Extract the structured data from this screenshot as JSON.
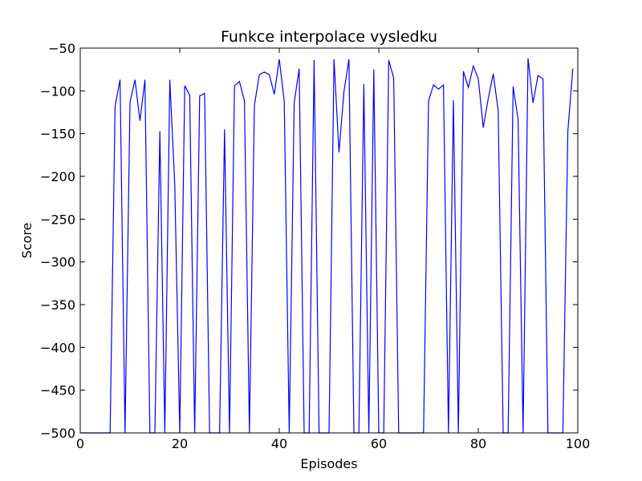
{
  "chart_data": {
    "type": "line",
    "title": "Funkce interpolace vysledku",
    "xlabel": "Episodes",
    "ylabel": "Score",
    "xlim": [
      0,
      100
    ],
    "ylim": [
      -500,
      -50
    ],
    "xticks": [
      0,
      20,
      40,
      60,
      80,
      100
    ],
    "yticks": [
      -500,
      -450,
      -400,
      -350,
      -300,
      -250,
      -200,
      -150,
      -100,
      -50
    ],
    "xtick_labels": [
      "0",
      "20",
      "40",
      "60",
      "80",
      "100"
    ],
    "ytick_labels": [
      "−500",
      "−450",
      "−400",
      "−350",
      "−300",
      "−250",
      "−200",
      "−150",
      "−100",
      "−50"
    ],
    "grid": false,
    "colors": {
      "line": "#0000ff",
      "axes": "#000000",
      "background": "#ffffff"
    },
    "series": [
      {
        "x": [
          0,
          1,
          2,
          3,
          4,
          5,
          6,
          7,
          8,
          9,
          10,
          11,
          12,
          13,
          14,
          15,
          16,
          17,
          18,
          19,
          20,
          21,
          22,
          23,
          24,
          25,
          26,
          27,
          28,
          29,
          30,
          31,
          32,
          33,
          34,
          35,
          36,
          37,
          38,
          39,
          40,
          41,
          42,
          43,
          44,
          45,
          46,
          47,
          48,
          49,
          50,
          51,
          52,
          53,
          54,
          55,
          56,
          57,
          58,
          59,
          60,
          61,
          62,
          63,
          64,
          65,
          66,
          67,
          68,
          69,
          70,
          71,
          72,
          73,
          74,
          75,
          76,
          77,
          78,
          79,
          80,
          81,
          82,
          83,
          84,
          85,
          86,
          87,
          88,
          89,
          90,
          91,
          92,
          93,
          94,
          95,
          96,
          97,
          98,
          99
        ],
        "values": [
          -500,
          -500,
          -500,
          -500,
          -500,
          -500,
          -500,
          -118,
          -87,
          -500,
          -113,
          -87,
          -135,
          -87,
          -500,
          -500,
          -147,
          -500,
          -87,
          -210,
          -500,
          -94,
          -105,
          -500,
          -106,
          -103,
          -500,
          -500,
          -500,
          -145,
          -500,
          -94,
          -89,
          -112,
          -500,
          -117,
          -81,
          -78,
          -81,
          -104,
          -63,
          -112,
          -500,
          -114,
          -74,
          -500,
          -500,
          -64,
          -500,
          -500,
          -500,
          -63,
          -172,
          -101,
          -63,
          -500,
          -500,
          -92,
          -500,
          -75,
          -500,
          -500,
          -64,
          -85,
          -500,
          -500,
          -500,
          -500,
          -500,
          -500,
          -112,
          -93,
          -98,
          -93,
          -500,
          -111,
          -500,
          -77,
          -96,
          -71,
          -86,
          -143,
          -109,
          -80,
          -123,
          -500,
          -500,
          -95,
          -133,
          -500,
          -62,
          -114,
          -82,
          -86,
          -500,
          -500,
          -500,
          -500,
          -147,
          -74
        ]
      }
    ]
  }
}
